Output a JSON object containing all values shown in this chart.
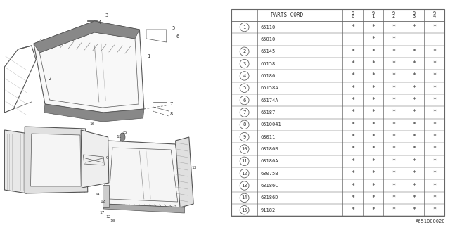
{
  "diagram_code": "A651000020",
  "table": {
    "header_col1": "PARTS CORD",
    "header_years": [
      "9\n0",
      "9\n1",
      "9\n2",
      "9\n3",
      "9\n4"
    ],
    "rows": [
      {
        "num": "1",
        "part": "65110",
        "marks": [
          true,
          true,
          true,
          true,
          true
        ]
      },
      {
        "num": "",
        "part": "65010",
        "marks": [
          false,
          true,
          true,
          false,
          false
        ]
      },
      {
        "num": "2",
        "part": "65145",
        "marks": [
          true,
          true,
          true,
          true,
          true
        ]
      },
      {
        "num": "3",
        "part": "65158",
        "marks": [
          true,
          true,
          true,
          true,
          true
        ]
      },
      {
        "num": "4",
        "part": "65186",
        "marks": [
          true,
          true,
          true,
          true,
          true
        ]
      },
      {
        "num": "5",
        "part": "65158A",
        "marks": [
          true,
          true,
          true,
          true,
          true
        ]
      },
      {
        "num": "6",
        "part": "65174A",
        "marks": [
          true,
          true,
          true,
          true,
          true
        ]
      },
      {
        "num": "7",
        "part": "65187",
        "marks": [
          true,
          true,
          true,
          true,
          true
        ]
      },
      {
        "num": "8",
        "part": "0510041",
        "marks": [
          true,
          true,
          true,
          true,
          true
        ]
      },
      {
        "num": "9",
        "part": "63011",
        "marks": [
          true,
          true,
          true,
          true,
          true
        ]
      },
      {
        "num": "10",
        "part": "63186B",
        "marks": [
          true,
          true,
          true,
          true,
          true
        ]
      },
      {
        "num": "11",
        "part": "63186A",
        "marks": [
          true,
          true,
          true,
          true,
          true
        ]
      },
      {
        "num": "12",
        "part": "63075B",
        "marks": [
          true,
          true,
          true,
          true,
          true
        ]
      },
      {
        "num": "13",
        "part": "63186C",
        "marks": [
          true,
          true,
          true,
          true,
          true
        ]
      },
      {
        "num": "14",
        "part": "63186D",
        "marks": [
          true,
          true,
          true,
          true,
          true
        ]
      },
      {
        "num": "15",
        "part": "91182",
        "marks": [
          true,
          true,
          true,
          true,
          true
        ]
      }
    ]
  },
  "bg_color": "#ffffff",
  "line_color": "#555555",
  "hatch_color": "#888888",
  "text_color": "#333333",
  "table_bg": "#ffffff",
  "table_line_color": "#666666"
}
